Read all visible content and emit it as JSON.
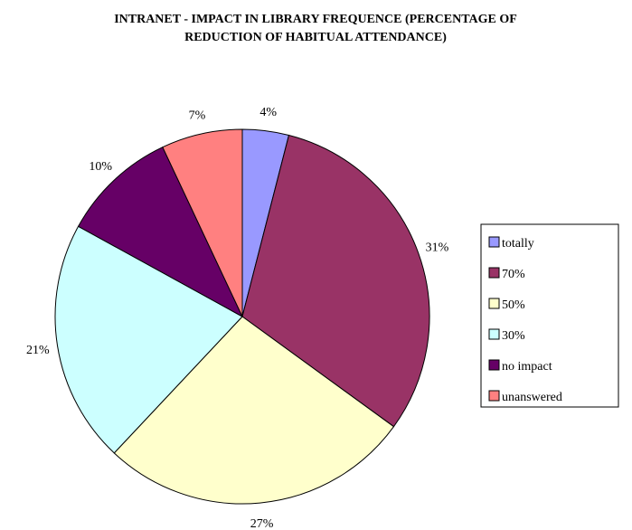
{
  "chart_data": {
    "type": "pie",
    "title_lines": [
      "INTRANET - IMPACT IN LIBRARY FREQUENCE (PERCENTAGE OF",
      "REDUCTION OF HABITUAL ATTENDANCE)"
    ],
    "slices": [
      {
        "name": "totally",
        "value": 4,
        "label": "4%",
        "color": "#9999ff"
      },
      {
        "name": "70%",
        "value": 31,
        "label": "31%",
        "color": "#993366"
      },
      {
        "name": "50%",
        "value": 27,
        "label": "27%",
        "color": "#ffffcc"
      },
      {
        "name": "30%",
        "value": 21,
        "label": "21%",
        "color": "#ccffff"
      },
      {
        "name": "no impact",
        "value": 10,
        "label": "10%",
        "color": "#660066"
      },
      {
        "name": "unanswered",
        "value": 7,
        "label": "7%",
        "color": "#ff8080"
      }
    ],
    "legend_position": "right"
  }
}
